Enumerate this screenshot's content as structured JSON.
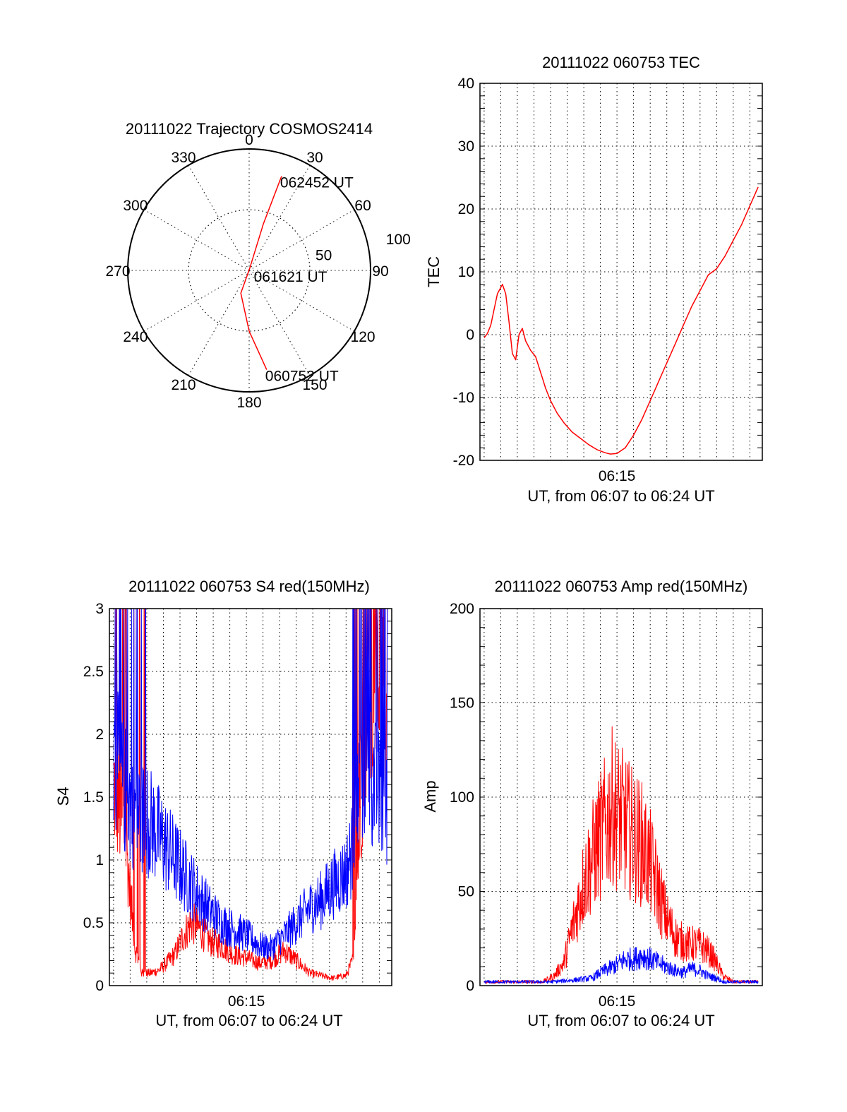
{
  "chart_data": [
    {
      "type": "polar",
      "title": "20111022 Trajectory COSMOS2414",
      "angle_labels": [
        "0",
        "30",
        "60",
        "90",
        "120",
        "150",
        "180",
        "210",
        "240",
        "270",
        "300",
        "330"
      ],
      "radius_labels": [
        "50",
        "100"
      ],
      "series": [
        {
          "color": "#ff0000",
          "points": [
            {
              "az": 170,
              "r": 83
            },
            {
              "az": 180,
              "r": 50
            },
            {
              "az": 200,
              "r": 20
            },
            {
              "az": 15,
              "r": 2
            },
            {
              "az": 17,
              "r": 40
            },
            {
              "az": 19,
              "r": 82
            }
          ]
        }
      ],
      "annotations": [
        {
          "text": "062452 UT",
          "az": 19,
          "r": 82
        },
        {
          "text": "061621 UT",
          "az": 90,
          "r": 5
        },
        {
          "text": "060752 UT",
          "az": 170,
          "r": 83
        }
      ]
    },
    {
      "type": "line",
      "title": "20111022 060753 TEC",
      "xlabel": "UT, from 06:07 to 06:24 UT",
      "ylabel": "TEC",
      "xtick_labels": [
        {
          "label": "06:15",
          "t": 8
        }
      ],
      "xlim": [
        -0.25,
        16.75
      ],
      "ylim": [
        -20,
        40
      ],
      "yticks": [
        -20,
        -10,
        0,
        10,
        20,
        30,
        40
      ],
      "grid": true,
      "series": [
        {
          "color": "#ff0000",
          "x": [
            0,
            0.2,
            0.4,
            0.6,
            0.8,
            1.0,
            1.1,
            1.3,
            1.5,
            1.7,
            1.9,
            2.1,
            2.3,
            2.5,
            2.8,
            3.1,
            3.4,
            3.7,
            4.0,
            4.4,
            4.8,
            5.3,
            5.8,
            6.3,
            6.8,
            7.3,
            7.6,
            8.0,
            8.5,
            9.0,
            9.5,
            10.0,
            10.5,
            11.0,
            11.5,
            12.0,
            12.5,
            13.0,
            13.5,
            14.0,
            14.5,
            15.0,
            15.5,
            16.0,
            16.5
          ],
          "y": [
            -0.5,
            0.2,
            1.5,
            4,
            6.5,
            7.5,
            8,
            6.5,
            2,
            -3,
            -4,
            0,
            1,
            -1,
            -2.5,
            -3.5,
            -6,
            -8.5,
            -10.5,
            -12.5,
            -14,
            -15.5,
            -16.5,
            -17.5,
            -18.3,
            -18.8,
            -19,
            -18.9,
            -18,
            -16,
            -13.5,
            -10.5,
            -7.5,
            -4.5,
            -1.5,
            1.5,
            4.5,
            7,
            9.5,
            10.5,
            12.5,
            15,
            17.5,
            20.5,
            23.5
          ]
        }
      ]
    },
    {
      "type": "line",
      "title": "20111022 060753 S4 red(150MHz)",
      "xlabel": "UT, from 06:07 to 06:24 UT",
      "ylabel": "S4",
      "xtick_labels": [
        {
          "label": "06:15",
          "t": 8
        }
      ],
      "xlim": [
        -0.25,
        16.75
      ],
      "ylim": [
        0,
        3
      ],
      "yticks": [
        0,
        0.5,
        1,
        1.5,
        2,
        2.5,
        3
      ],
      "ytick_labels": [
        "0",
        "0.5",
        "1",
        "1.5",
        "2",
        "2.5",
        "3"
      ],
      "grid": true,
      "series": [
        {
          "color": "#ff0000",
          "x": [
            0,
            0.7,
            1.3,
            1.7,
            2.2,
            2.7,
            3.2,
            3.7,
            4.2,
            4.7,
            5.2,
            5.8,
            6.5,
            7.2,
            8.0,
            8.8,
            9.5,
            10.3,
            11.0,
            11.8,
            12.5,
            13.2,
            14.0,
            14.4,
            14.8,
            15.2,
            16.0,
            16.5
          ],
          "y": [
            1.6,
            1.2,
            0.3,
            0.1,
            0.1,
            0.12,
            0.18,
            0.25,
            0.4,
            0.5,
            0.45,
            0.35,
            0.32,
            0.25,
            0.22,
            0.18,
            0.2,
            0.28,
            0.2,
            0.1,
            0.08,
            0.06,
            0.08,
            0.2,
            1.2,
            2.2,
            2.6,
            2.0
          ]
        },
        {
          "color": "#0000ff",
          "x": [
            0,
            0.4,
            0.8,
            1.2,
            1.7,
            2.2,
            2.7,
            3.2,
            3.7,
            4.2,
            4.7,
            5.2,
            5.8,
            6.5,
            7.2,
            8.0,
            8.8,
            9.5,
            10.3,
            11.0,
            11.8,
            12.5,
            13.2,
            14.0,
            14.4,
            14.8,
            15.2,
            16.0,
            16.5
          ],
          "y": [
            1.8,
            1.7,
            1.5,
            1.4,
            1.35,
            1.3,
            1.2,
            1.1,
            1.0,
            0.9,
            0.8,
            0.7,
            0.6,
            0.5,
            0.45,
            0.4,
            0.32,
            0.3,
            0.4,
            0.5,
            0.62,
            0.68,
            0.8,
            0.9,
            1.1,
            1.6,
            1.8,
            1.5,
            1.4
          ]
        }
      ]
    },
    {
      "type": "line",
      "title": "20111022 060753 Amp red(150MHz)",
      "xlabel": "UT, from 06:07 to 06:24 UT",
      "ylabel": "Amp",
      "xtick_labels": [
        {
          "label": "06:15",
          "t": 8
        }
      ],
      "xlim": [
        -0.25,
        16.75
      ],
      "ylim": [
        0,
        200
      ],
      "yticks": [
        0,
        50,
        100,
        150,
        200
      ],
      "grid": true,
      "series": [
        {
          "color": "#ff0000",
          "x": [
            0,
            3.5,
            4.2,
            4.8,
            5.3,
            6.0,
            6.8,
            7.3,
            7.7,
            8.1,
            8.5,
            9.0,
            9.5,
            10.0,
            10.5,
            11.0,
            11.6,
            12.2,
            12.8,
            13.3,
            13.8,
            14.4,
            15.0,
            16.5
          ],
          "y": [
            2,
            2,
            5,
            12,
            30,
            55,
            75,
            85,
            95,
            90,
            85,
            80,
            75,
            65,
            50,
            35,
            25,
            22,
            22,
            20,
            15,
            5,
            2,
            2
          ]
        },
        {
          "color": "#0000ff",
          "x": [
            0,
            4.0,
            5.5,
            6.5,
            7.0,
            7.5,
            8.0,
            8.5,
            9.0,
            9.5,
            10.0,
            10.5,
            11.0,
            11.5,
            12.0,
            12.5,
            13.0,
            13.5,
            14.0,
            14.4,
            16.5
          ],
          "y": [
            2,
            2,
            3,
            4,
            7,
            9,
            11,
            14,
            14,
            16,
            14,
            12,
            10,
            8,
            7,
            9,
            8,
            5,
            4,
            2,
            2
          ]
        }
      ]
    }
  ]
}
